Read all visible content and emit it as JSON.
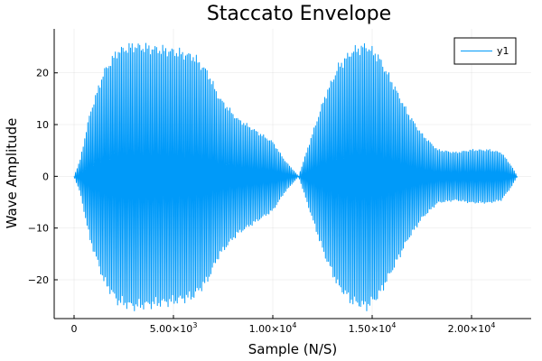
{
  "chart_data": {
    "type": "line",
    "title": "Staccato Envelope",
    "xlabel": "Sample (N/S)",
    "ylabel": "Wave Amplitude",
    "xlim": [
      -1000,
      23000
    ],
    "ylim": [
      -27.5,
      28.5
    ],
    "grid": true,
    "legend_position": "top-right",
    "x_ticks": [
      {
        "value": 0,
        "mantissa": "0",
        "exp": ""
      },
      {
        "value": 5000,
        "mantissa": "5.00×10",
        "exp": "3"
      },
      {
        "value": 10000,
        "mantissa": "1.00×10",
        "exp": "4"
      },
      {
        "value": 15000,
        "mantissa": "1.50×10",
        "exp": "4"
      },
      {
        "value": 20000,
        "mantissa": "2.00×10",
        "exp": "4"
      }
    ],
    "y_ticks": [
      {
        "value": -20,
        "label": "−20"
      },
      {
        "value": -10,
        "label": "−10"
      },
      {
        "value": 0,
        "label": "0"
      },
      {
        "value": 10,
        "label": "10"
      },
      {
        "value": 20,
        "label": "20"
      }
    ],
    "series": [
      {
        "name": "y1",
        "color": "#009af9",
        "cycles": 290,
        "envelope": {
          "x": [
            0,
            300,
            800,
            1500,
            2200,
            3000,
            4000,
            5000,
            6000,
            6700,
            7300,
            8200,
            9200,
            10000,
            10600,
            11300,
            11900,
            12600,
            13300,
            14000,
            14700,
            15300,
            16000,
            16800,
            17500,
            18300,
            19200,
            20000,
            20900,
            21500,
            22000,
            22300
          ],
          "amplitude": [
            0,
            3,
            12,
            20,
            24,
            25,
            24.5,
            24,
            23,
            20,
            15,
            11,
            8.5,
            6.5,
            3,
            0,
            7,
            15,
            21,
            24,
            25,
            23,
            18,
            12,
            8,
            5,
            4.5,
            5,
            5,
            4.5,
            2,
            0
          ]
        }
      }
    ]
  }
}
